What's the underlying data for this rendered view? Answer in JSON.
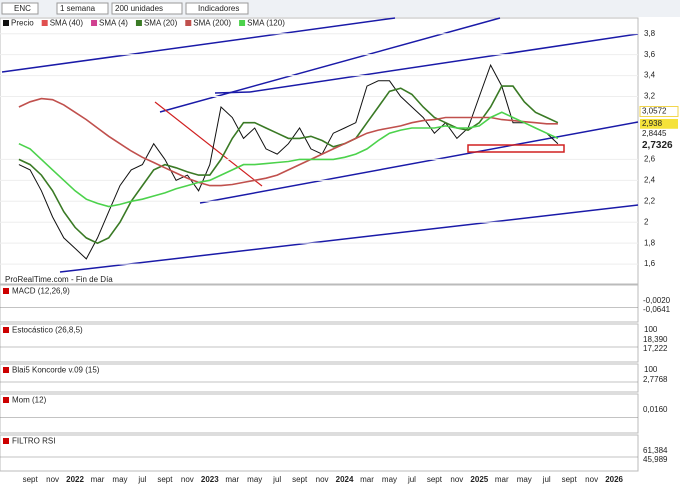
{
  "toolbar": {
    "symbol": "ENC",
    "period": "1 semana",
    "units": "200 unidades",
    "indicators": "Indicadores"
  },
  "chart_data": {
    "type": "line",
    "watermark": "ProRealTime.com - Fin de Día",
    "categories": [
      null,
      "sept",
      null,
      "nov",
      null,
      "2022",
      null,
      "mar",
      null,
      "may",
      null,
      "jul",
      null,
      "sept",
      null,
      "nov",
      null,
      "2023",
      null,
      "mar",
      null,
      "may",
      null,
      "jul",
      null,
      "sept",
      null,
      "nov",
      null,
      "2024",
      null,
      "mar",
      null,
      "may",
      null,
      "jul",
      null,
      "sept",
      null,
      "nov",
      null,
      "2025",
      null,
      "mar",
      null,
      "may",
      null,
      "jul",
      null,
      "sept",
      null,
      "nov",
      null,
      "2026"
    ],
    "ylim": [
      1.41,
      3.95
    ],
    "yticks": [
      {
        "value": 3.8,
        "label": "3,8"
      },
      {
        "value": 3.6,
        "label": "3,6"
      },
      {
        "value": 3.4,
        "label": "3,4"
      },
      {
        "value": 3.2,
        "label": "3,2"
      },
      {
        "value": 2.6,
        "label": "2,6"
      },
      {
        "value": 2.4,
        "label": "2,4"
      },
      {
        "value": 2.2,
        "label": "2,2"
      },
      2,
      {
        "value": 1.8,
        "label": "1,8"
      },
      {
        "value": 1.6,
        "label": "1,6"
      }
    ],
    "price_tags": [
      {
        "value": 3.0572,
        "label": "3,0572",
        "color": "#f2d64b"
      },
      {
        "value": 2.938,
        "label": "2,938",
        "color": "#f5e23a"
      },
      {
        "value": 2.8445,
        "label": "2,8445",
        "color": "#333333"
      },
      {
        "value": 2.7326,
        "label": "2,7326",
        "color": "#2e9b2e"
      }
    ],
    "series": [
      {
        "name": "Precio",
        "color": "#111111",
        "values": [
          2.55,
          2.5,
          2.3,
          2.05,
          1.85,
          1.75,
          1.65,
          1.85,
          2.1,
          2.35,
          2.5,
          2.55,
          2.75,
          2.6,
          2.4,
          2.45,
          2.3,
          2.55,
          3.1,
          3.0,
          2.8,
          2.9,
          2.7,
          2.65,
          2.75,
          2.9,
          2.7,
          2.65,
          2.85,
          2.9,
          2.95,
          3.3,
          3.35,
          3.35,
          3.2,
          3.1,
          3.0,
          2.85,
          2.95,
          2.8,
          2.9,
          3.2,
          3.5,
          3.3,
          2.95,
          2.95,
          2.9,
          2.85,
          2.75,
          null,
          null,
          null,
          null,
          null
        ]
      },
      {
        "name": "SMA (40)",
        "color": "#e05050"
      },
      {
        "name": "SMA (4)",
        "color": "#d04090"
      },
      {
        "name": "SMA (20)",
        "color": "#3a7a25",
        "values": [
          2.6,
          2.55,
          2.45,
          2.3,
          2.1,
          1.95,
          1.85,
          1.8,
          1.85,
          2.0,
          2.2,
          2.35,
          2.5,
          2.55,
          2.52,
          2.48,
          2.45,
          2.45,
          2.6,
          2.8,
          2.95,
          2.95,
          2.9,
          2.85,
          2.8,
          2.8,
          2.82,
          2.78,
          2.72,
          2.75,
          2.8,
          2.95,
          3.1,
          3.25,
          3.28,
          3.22,
          3.1,
          3.0,
          2.95,
          2.9,
          2.88,
          2.95,
          3.1,
          3.3,
          3.3,
          3.15,
          3.05,
          3.0,
          2.95,
          null,
          null,
          null,
          null,
          null
        ]
      },
      {
        "name": "SMA (200)",
        "color": "#c0504d",
        "values": [
          3.1,
          3.15,
          3.18,
          3.17,
          3.12,
          3.05,
          2.98,
          2.9,
          2.82,
          2.75,
          2.68,
          2.62,
          2.57,
          2.52,
          2.47,
          2.42,
          2.38,
          2.35,
          2.35,
          2.36,
          2.38,
          2.4,
          2.42,
          2.45,
          2.5,
          2.55,
          2.6,
          2.65,
          2.7,
          2.75,
          2.8,
          2.85,
          2.88,
          2.9,
          2.92,
          2.95,
          2.97,
          2.98,
          3.0,
          3.0,
          3.0,
          3.0,
          3.0,
          2.98,
          2.97,
          2.96,
          2.95,
          2.94,
          2.94,
          null,
          null,
          null,
          null,
          null
        ]
      },
      {
        "name": "SMA (120)",
        "color": "#4cd24c",
        "values": [
          2.75,
          2.7,
          2.6,
          2.5,
          2.4,
          2.3,
          2.22,
          2.18,
          2.15,
          2.17,
          2.2,
          2.22,
          2.25,
          2.28,
          2.32,
          2.35,
          2.38,
          2.4,
          2.45,
          2.5,
          2.55,
          2.55,
          2.56,
          2.57,
          2.58,
          2.6,
          2.6,
          2.6,
          2.6,
          2.62,
          2.65,
          2.7,
          2.78,
          2.85,
          2.88,
          2.9,
          2.9,
          2.9,
          2.92,
          2.9,
          2.9,
          2.92,
          3.0,
          3.05,
          3.0,
          2.95,
          2.9,
          2.85,
          2.8,
          null,
          null,
          null,
          null,
          null
        ]
      }
    ]
  },
  "indicators": [
    {
      "title": "MACD (12,26,9)",
      "ticks": [],
      "tags": [
        "-0,0020",
        "-0,0641"
      ]
    },
    {
      "title": "Estocástico (26,8,5)",
      "ticks": [
        100
      ],
      "tags": [
        "18,390",
        "17,222"
      ]
    },
    {
      "title": "Blai5 Koncorde v.09 (15)",
      "ticks": [
        100
      ],
      "tags": [
        "2,7768"
      ]
    },
    {
      "title": "Mom (12)",
      "ticks": [],
      "tags": [
        "0,0160"
      ]
    },
    {
      "title": "FILTRO RSI",
      "ticks": [],
      "tags": [
        "61,384",
        "45,989"
      ]
    }
  ]
}
